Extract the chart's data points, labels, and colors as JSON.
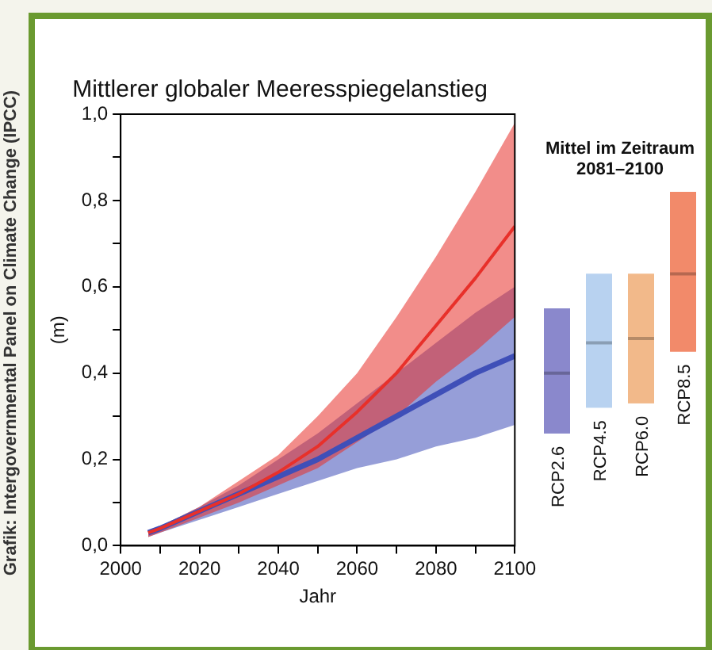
{
  "chart_data": [
    {
      "type": "line",
      "title": "Mittlerer globaler Meeresspiegelanstieg",
      "xlabel": "Jahr",
      "ylabel": "(m)",
      "x": [
        2007,
        2010,
        2020,
        2030,
        2040,
        2050,
        2060,
        2070,
        2080,
        2090,
        2100
      ],
      "series": [
        {
          "color": "#e8302a",
          "values": [
            0.03,
            0.04,
            0.08,
            0.12,
            0.17,
            0.23,
            0.31,
            0.4,
            0.51,
            0.62,
            0.74
          ],
          "lower": [
            0.02,
            0.03,
            0.065,
            0.1,
            0.14,
            0.18,
            0.24,
            0.3,
            0.38,
            0.45,
            0.53
          ],
          "upper": [
            0.035,
            0.045,
            0.09,
            0.15,
            0.21,
            0.3,
            0.4,
            0.53,
            0.67,
            0.82,
            0.98
          ]
        },
        {
          "color": "#3f4fb8",
          "values": [
            0.03,
            0.04,
            0.08,
            0.12,
            0.16,
            0.2,
            0.25,
            0.3,
            0.35,
            0.4,
            0.44
          ],
          "lower": [
            0.02,
            0.03,
            0.06,
            0.09,
            0.12,
            0.15,
            0.18,
            0.2,
            0.23,
            0.25,
            0.28
          ],
          "upper": [
            0.035,
            0.045,
            0.09,
            0.14,
            0.2,
            0.26,
            0.33,
            0.4,
            0.47,
            0.54,
            0.6
          ]
        }
      ],
      "xlim": [
        2000,
        2100
      ],
      "xticks": [
        2000,
        {
          "value": 2010,
          "label": null
        },
        2020,
        {
          "value": 2030,
          "label": null
        },
        2040,
        {
          "value": 2050,
          "label": null
        },
        2060,
        {
          "value": 2070,
          "label": null
        },
        2080,
        {
          "value": 2090,
          "label": null
        },
        2100
      ],
      "ylim": [
        0,
        1
      ],
      "yticks": [
        {
          "value": 0,
          "label": "0,0"
        },
        {
          "value": 0.1,
          "label": null
        },
        {
          "value": 0.2,
          "label": "0,2"
        },
        {
          "value": 0.3,
          "label": null
        },
        {
          "value": 0.4,
          "label": "0,4"
        },
        {
          "value": 0.5,
          "label": null
        },
        {
          "value": 0.6,
          "label": "0,6"
        },
        {
          "value": 0.7,
          "label": null
        },
        {
          "value": 0.8,
          "label": "0,8"
        },
        {
          "value": 0.9,
          "label": null
        },
        {
          "value": 1,
          "label": "1,0"
        }
      ],
      "grid": false,
      "legend": false,
      "marker": "none",
      "line_style": "solid",
      "annotations": [
        "Grafik: Intergovernmental Panel on Climate Change (IPCC)"
      ]
    },
    {
      "type": "box",
      "title": "Mittel im Zeitraum 2081–2100",
      "categories": [
        "RCP2.6",
        "RCP4.5",
        "RCP6.0",
        "RCP8.5"
      ],
      "boxes": [
        {
          "low": 0.26,
          "q1": 0.26,
          "median": 0.4,
          "q3": 0.55,
          "high": 0.55
        },
        {
          "low": 0.32,
          "q1": 0.32,
          "median": 0.47,
          "q3": 0.63,
          "high": 0.63
        },
        {
          "low": 0.33,
          "q1": 0.33,
          "median": 0.48,
          "q3": 0.63,
          "high": 0.63
        },
        {
          "low": 0.45,
          "q1": 0.45,
          "median": 0.63,
          "q3": 0.82,
          "high": 0.82
        }
      ],
      "colors": [
        "#8a88cc",
        "#b8d2f0",
        "#f2b98a",
        "#f28a6a"
      ],
      "ylim": [
        0,
        1
      ],
      "tick_labels": false
    }
  ]
}
